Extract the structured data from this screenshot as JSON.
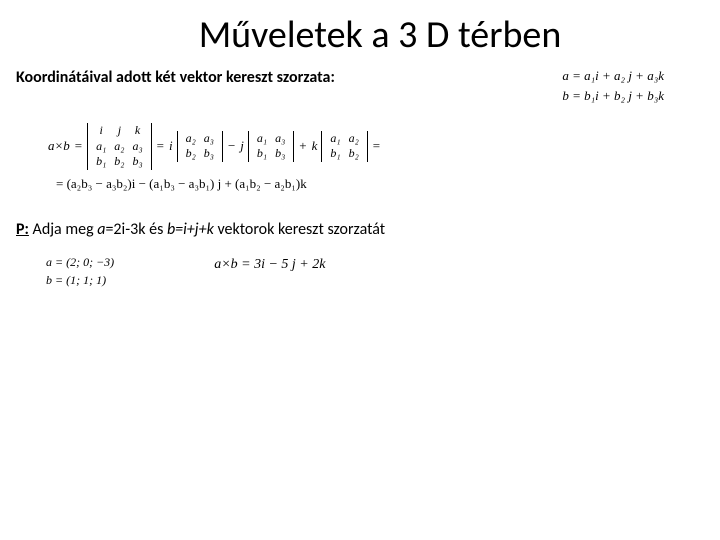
{
  "title": "Műveletek a 3 D térben",
  "subtitle": "Koordinátáival adott két vektor kereszt szorzata:",
  "vec_a": "a = a₁i + a₂ j + a₃k",
  "vec_b": "b = b₁i + b₂ j + b₃k",
  "axb_label": "a×b",
  "det3_r1": [
    "i",
    "j",
    "k"
  ],
  "det3_r2": [
    "a₁",
    "a₂",
    "a₃"
  ],
  "det3_r3": [
    "b₁",
    "b₂",
    "b₃"
  ],
  "m1": [
    [
      "a₂",
      "a₃"
    ],
    [
      "b₂",
      "b₃"
    ]
  ],
  "m2": [
    [
      "a₁",
      "a₃"
    ],
    [
      "b₁",
      "b₃"
    ]
  ],
  "m3": [
    [
      "a₁",
      "a₂"
    ],
    [
      "b₁",
      "b₂"
    ]
  ],
  "result": "= (a₂b₃ − a₃b₂)i − (a₁b₃ − a₃b₁) j + (a₁b₂ − a₂b₁)k",
  "problem_label": "P:",
  "problem_text": " Adja meg ",
  "problem_a": "a",
  "problem_aval": "=2i-3k és ",
  "problem_b": "b=i+j+k",
  "problem_tail": " vektorok kereszt szorzatát",
  "ans_a": "a = (2; 0; −3)",
  "ans_b": "b = (1; 1; 1)",
  "ans_cross": "a×b = 3i − 5 j + 2k",
  "colors": {
    "bg": "#ffffff",
    "text": "#000000"
  }
}
